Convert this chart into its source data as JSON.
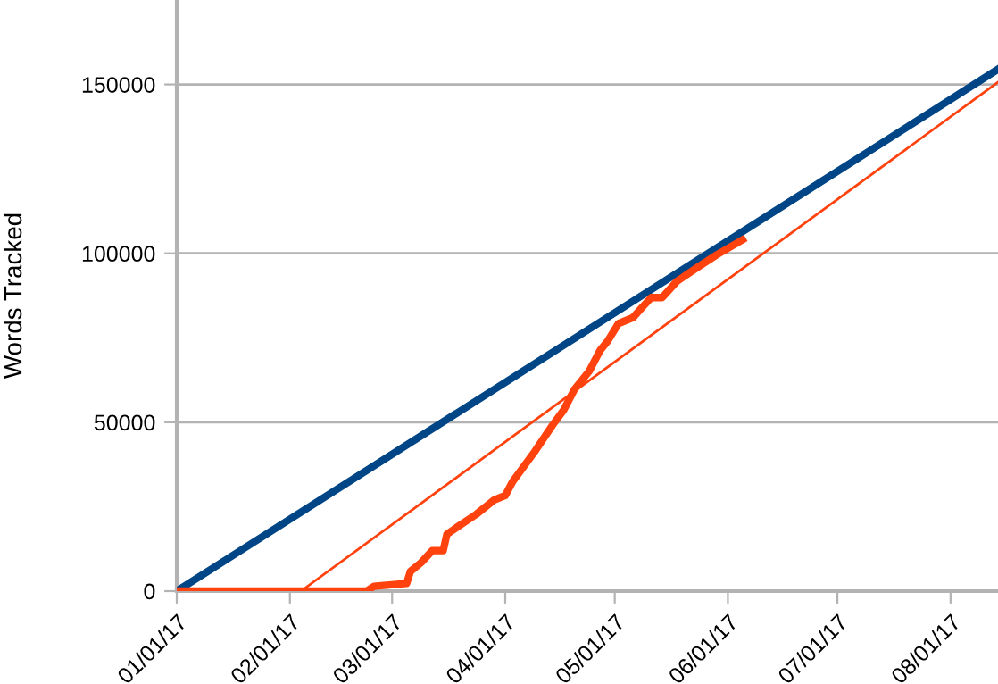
{
  "chart_data": {
    "type": "line",
    "ylabel": "Words Tracked",
    "series": [
      {
        "color": "#004586",
        "x": [
          "2017-01-01",
          "2017-08-14"
        ],
        "values": [
          0,
          154500
        ]
      },
      {
        "color": "#ff420e",
        "x": [
          "2017-02-04",
          "2017-08-14"
        ],
        "values": [
          0,
          150700
        ]
      },
      {
        "color": "#ff420e",
        "x": [
          "2017-01-01",
          "2017-02-22",
          "2017-02-24",
          "2017-03-05",
          "2017-03-06",
          "2017-03-09",
          "2017-03-12",
          "2017-03-15",
          "2017-03-16",
          "2017-03-19",
          "2017-03-24",
          "2017-03-29",
          "2017-04-01",
          "2017-04-03",
          "2017-04-09",
          "2017-04-14",
          "2017-04-17",
          "2017-04-20",
          "2017-04-24",
          "2017-04-27",
          "2017-04-29",
          "2017-05-02",
          "2017-05-06",
          "2017-05-09",
          "2017-05-11",
          "2017-05-14",
          "2017-05-18",
          "2017-05-24",
          "2017-05-29",
          "2017-06-05"
        ],
        "values": [
          0,
          0,
          1400,
          2300,
          5800,
          8500,
          12000,
          12000,
          16800,
          19100,
          22700,
          27000,
          28300,
          32400,
          41200,
          49200,
          53600,
          59800,
          65100,
          71300,
          73900,
          79200,
          81000,
          84600,
          86900,
          86900,
          91700,
          96100,
          99600,
          104000
        ]
      }
    ],
    "xlim": [
      "2017-01-01",
      "2017-08-14"
    ],
    "xticks": [
      {
        "value": "2017-01-01",
        "label": "01/01/17"
      },
      {
        "value": "2017-02-01",
        "label": "02/01/17"
      },
      {
        "value": "2017-03-01",
        "label": "03/01/17"
      },
      {
        "value": "2017-04-01",
        "label": "04/01/17"
      },
      {
        "value": "2017-05-01",
        "label": "05/01/17"
      },
      {
        "value": "2017-06-01",
        "label": "06/01/17"
      },
      {
        "value": "2017-07-01",
        "label": "07/01/17"
      },
      {
        "value": "2017-08-01",
        "label": "08/01/17"
      }
    ],
    "ylim": [
      0,
      175000
    ],
    "yticks": [
      0,
      50000,
      100000,
      150000
    ],
    "grid": "y",
    "legend": false,
    "marker": "none",
    "line_style": "solid"
  }
}
